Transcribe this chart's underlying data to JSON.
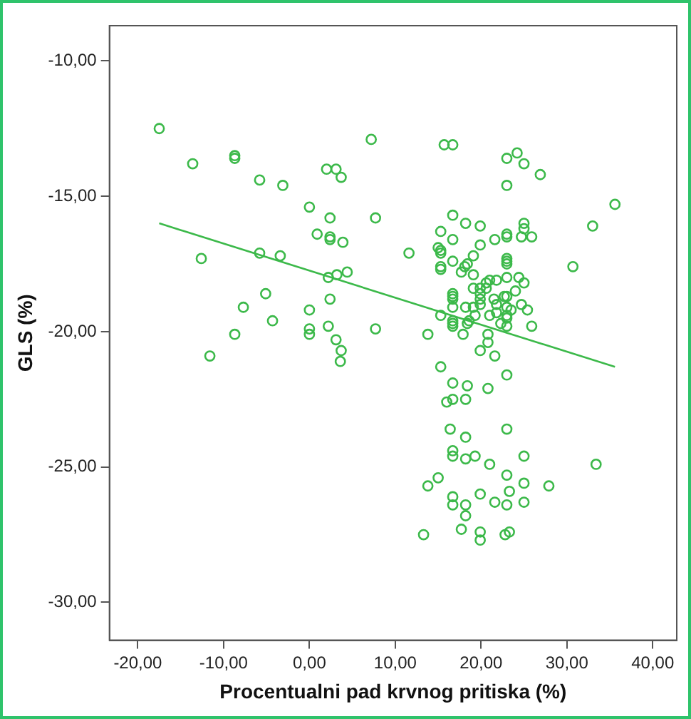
{
  "chart_data": {
    "type": "scatter",
    "xlabel": "Procentualni pad krvnog pritiska (%)",
    "ylabel": "GLS (%)",
    "xlim": [
      -23.3,
      42.8
    ],
    "ylim": [
      -31.4,
      -8.7
    ],
    "xticks": [
      {
        "value": -20,
        "label": "-20,00"
      },
      {
        "value": -10,
        "label": "-10,00"
      },
      {
        "value": 0,
        "label": "0,00"
      },
      {
        "value": 10,
        "label": "10,00"
      },
      {
        "value": 20,
        "label": "20,00"
      },
      {
        "value": 30,
        "label": "30,00"
      },
      {
        "value": 40,
        "label": "40,00"
      }
    ],
    "yticks": [
      {
        "value": -10,
        "label": "-10,00"
      },
      {
        "value": -15,
        "label": "-15,00"
      },
      {
        "value": -20,
        "label": "-20,00"
      },
      {
        "value": -25,
        "label": "-25,00"
      },
      {
        "value": -30,
        "label": "-30,00"
      }
    ],
    "grid": false,
    "legend": false,
    "series": [
      {
        "type": "scatter",
        "color": "#3cb94a",
        "marker": "circle",
        "x": [
          -17.5,
          -13.6,
          -8.7,
          -8.7,
          -5.8,
          -3.1,
          0,
          2.4,
          0.9,
          2.4,
          2.4,
          3.9,
          -12.6,
          -5.8,
          -3.4,
          2.2,
          3.2,
          4.4,
          -5.1,
          -7.7,
          2.4,
          0,
          -4.3,
          -8.7,
          0,
          0,
          2.2,
          3.1,
          3.7,
          3.6,
          -11.6,
          7.2,
          7.7,
          7.7,
          2.0,
          3.1,
          3.7,
          15.7,
          16.7,
          23.0,
          24.2,
          25.0,
          26.9,
          23.0,
          35.6,
          33.0,
          16.7,
          18.2,
          19.9,
          15.3,
          16.7,
          21.6,
          23.0,
          23.0,
          25.0,
          25.0,
          24.7,
          25.9,
          15.0,
          15.3,
          15.3,
          19.9,
          11.6,
          15.3,
          15.3,
          16.7,
          18.4,
          18.1,
          19.1,
          23.0,
          23.0,
          23.0,
          30.7,
          17.7,
          19.1,
          23.0,
          21.0,
          21.8,
          20.6,
          24.4,
          25.0,
          19.1,
          19.9,
          20.6,
          24.0,
          16.7,
          16.7,
          16.7,
          19.9,
          19.9,
          19.9,
          21.5,
          21.8,
          23.0,
          22.7,
          16.7,
          18.2,
          19.1,
          24.7,
          23.0,
          23.5,
          25.4,
          21.0,
          21.8,
          19.3,
          15.3,
          23.0,
          23.0,
          16.7,
          16.7,
          16.7,
          18.6,
          18.4,
          22.3,
          23.0,
          25.9,
          13.8,
          17.9,
          20.8,
          20.8,
          19.9,
          21.6,
          15.3,
          23.0,
          16.7,
          18.4,
          20.8,
          16.0,
          16.7,
          18.2,
          16.4,
          23.0,
          18.2,
          16.7,
          16.7,
          18.2,
          19.3,
          21.0,
          25.0,
          33.4,
          15.0,
          13.8,
          23.0,
          25.0,
          27.9,
          23.3,
          19.9,
          16.7,
          16.7,
          18.2,
          21.6,
          23.0,
          25.0,
          18.2,
          17.7,
          19.9,
          19.9,
          22.8,
          23.3,
          13.3
        ],
        "values": [
          -12.5,
          -13.8,
          -13.6,
          -13.5,
          -14.4,
          -14.6,
          -15.4,
          -15.8,
          -16.4,
          -16.5,
          -16.6,
          -16.7,
          -17.3,
          -17.1,
          -17.2,
          -18.0,
          -17.9,
          -17.8,
          -18.6,
          -19.1,
          -18.8,
          -19.2,
          -19.6,
          -20.1,
          -19.9,
          -20.1,
          -19.8,
          -20.3,
          -20.7,
          -21.1,
          -20.9,
          -12.9,
          -15.8,
          -19.9,
          -14.0,
          -14.0,
          -14.3,
          -13.1,
          -13.1,
          -13.6,
          -13.4,
          -13.8,
          -14.2,
          -14.6,
          -15.3,
          -16.1,
          -15.7,
          -16.0,
          -16.1,
          -16.3,
          -16.6,
          -16.6,
          -16.4,
          -16.5,
          -16.0,
          -16.2,
          -16.5,
          -16.5,
          -16.9,
          -17.0,
          -17.1,
          -16.8,
          -17.1,
          -17.6,
          -17.7,
          -17.4,
          -17.5,
          -17.6,
          -17.2,
          -17.3,
          -17.4,
          -17.5,
          -17.6,
          -17.8,
          -17.9,
          -18.0,
          -18.1,
          -18.1,
          -18.2,
          -18.0,
          -18.2,
          -18.4,
          -18.4,
          -18.4,
          -18.5,
          -18.6,
          -18.7,
          -18.8,
          -18.6,
          -18.8,
          -19.0,
          -18.8,
          -19.0,
          -18.7,
          -18.7,
          -19.1,
          -19.1,
          -19.1,
          -19.0,
          -19.1,
          -19.2,
          -19.2,
          -19.4,
          -19.3,
          -19.4,
          -19.4,
          -19.4,
          -19.5,
          -19.6,
          -19.7,
          -19.8,
          -19.6,
          -19.7,
          -19.7,
          -19.8,
          -19.8,
          -20.1,
          -20.1,
          -20.1,
          -20.4,
          -20.7,
          -20.9,
          -21.3,
          -21.6,
          -21.9,
          -22.0,
          -22.1,
          -22.6,
          -22.5,
          -22.5,
          -23.6,
          -23.6,
          -23.9,
          -24.4,
          -24.6,
          -24.7,
          -24.6,
          -24.9,
          -24.6,
          -24.9,
          -25.4,
          -25.7,
          -25.3,
          -25.6,
          -25.7,
          -25.9,
          -26.0,
          -26.1,
          -26.4,
          -26.4,
          -26.3,
          -26.4,
          -26.3,
          -26.8,
          -27.3,
          -27.4,
          -27.7,
          -27.5,
          -27.4,
          -27.5
        ]
      },
      {
        "type": "line",
        "color": "#3cb94a",
        "x": [
          -17.5,
          35.6
        ],
        "values": [
          -16.0,
          -21.3
        ]
      }
    ]
  }
}
